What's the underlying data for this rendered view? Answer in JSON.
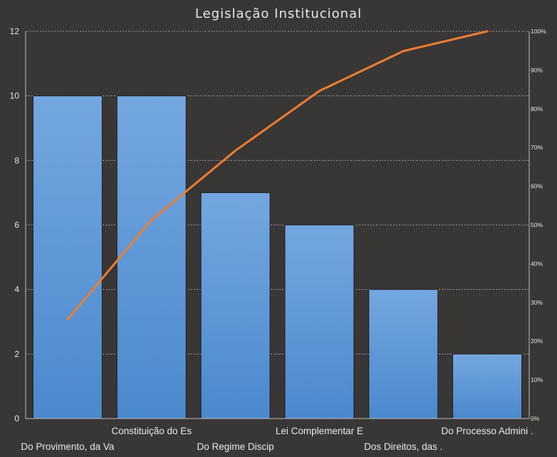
{
  "chart_data": {
    "type": "bar",
    "title": "Legislação Institucional",
    "categories": [
      "Do Provimento,  da Va",
      "Constituição do  Es",
      "Do Regime Discip",
      "Lei Complementar  E",
      "Dos Direitos, das .",
      "Do Processo Admini ."
    ],
    "series": [
      {
        "type": "bar",
        "values": [
          10,
          10,
          7,
          6,
          4,
          2
        ]
      },
      {
        "type": "line",
        "axis": "secondary",
        "values": [
          25.6,
          51.3,
          69.2,
          84.6,
          94.9,
          100
        ]
      }
    ],
    "ylim": [
      0,
      12
    ],
    "yticks": [
      0,
      2,
      4,
      6,
      8,
      10,
      12
    ],
    "y2lim": [
      0,
      100
    ],
    "y2ticks": [
      "0%",
      "10%",
      "20%",
      "30%",
      "40%",
      "50%",
      "60%",
      "70%",
      "80%",
      "90%",
      "100%"
    ],
    "grid": true,
    "legend": "none",
    "colors": {
      "background": "#393636",
      "bar_top": "#74a7e0",
      "bar_bottom": "#4b89cd",
      "bar_edge": "#1c1c1c",
      "line": "#ed7d31",
      "grid": "#9a9a9a",
      "axis": "#bdbdbd",
      "text": "#e6e6e6"
    }
  }
}
